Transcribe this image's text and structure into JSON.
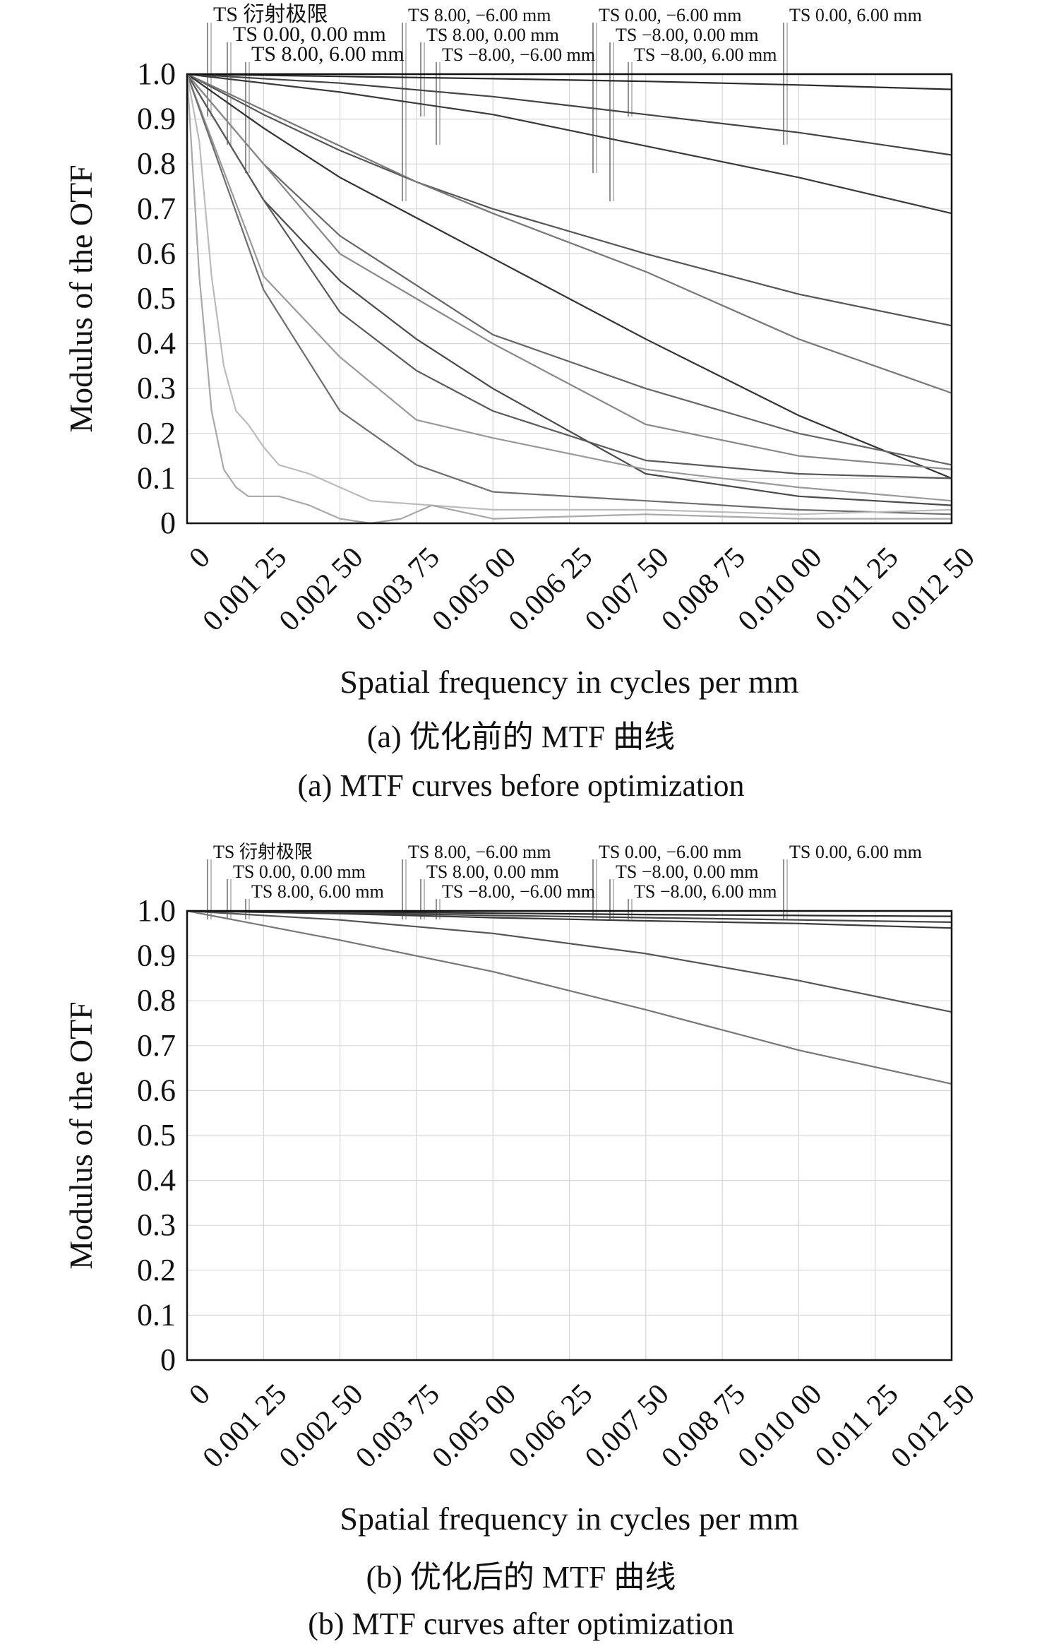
{
  "chart_data": [
    {
      "type": "line",
      "panel": "a",
      "ylabel": "Modulus of the OTF",
      "xlabel": "Spatial frequency in cycles per mm",
      "caption_cn": "(a) 优化前的 MTF 曲线",
      "caption_en": "(a) MTF curves before optimization",
      "xlim": [
        0,
        0.0125
      ],
      "ylim": [
        0,
        1.0
      ],
      "grid": true,
      "x_ticks": [
        "0",
        "0.001 25",
        "0.002 50",
        "0.003 75",
        "0.005 00",
        "0.006 25",
        "0.007 50",
        "0.008 75",
        "0.010 00",
        "0.011 25",
        "0.012 50"
      ],
      "y_ticks": [
        "0",
        "0.1",
        "0.2",
        "0.3",
        "0.4",
        "0.5",
        "0.6",
        "0.7",
        "0.8",
        "0.9",
        "1.0"
      ],
      "legend": [
        "TS 衍射极限",
        "TS 0.00, 0.00 mm",
        "TS 8.00, 6.00 mm",
        "TS 8.00, −6.00 mm",
        "TS 8.00, 0.00 mm",
        "TS −8.00, −6.00 mm",
        "TS 0.00, −6.00 mm",
        "TS −8.00, 0.00 mm",
        "TS −8.00, 6.00 mm",
        "TS 0.00, 6.00 mm"
      ],
      "series": [
        {
          "x": [
            0,
            0.0025,
            0.005,
            0.0075,
            0.01,
            0.0125
          ],
          "values": [
            1.0,
            0.995,
            0.99,
            0.984,
            0.976,
            0.966
          ]
        },
        {
          "x": [
            0,
            0.0025,
            0.005,
            0.0075,
            0.01,
            0.0125
          ],
          "values": [
            1.0,
            0.98,
            0.95,
            0.91,
            0.87,
            0.82
          ]
        },
        {
          "x": [
            0,
            0.0025,
            0.005,
            0.0075,
            0.01,
            0.0125
          ],
          "values": [
            1.0,
            0.96,
            0.91,
            0.84,
            0.77,
            0.69
          ]
        },
        {
          "x": [
            0,
            0.00125,
            0.0025,
            0.00375,
            0.005,
            0.0075,
            0.01,
            0.0125
          ],
          "values": [
            1.0,
            0.91,
            0.83,
            0.76,
            0.7,
            0.6,
            0.51,
            0.44
          ]
        },
        {
          "x": [
            0,
            0.00125,
            0.0025,
            0.00375,
            0.005,
            0.0075,
            0.01,
            0.0125
          ],
          "values": [
            1.0,
            0.92,
            0.84,
            0.76,
            0.69,
            0.56,
            0.41,
            0.29
          ]
        },
        {
          "x": [
            0,
            0.00125,
            0.0025,
            0.00375,
            0.005,
            0.0075,
            0.01,
            0.0125
          ],
          "values": [
            1.0,
            0.88,
            0.77,
            0.68,
            0.59,
            0.41,
            0.24,
            0.1
          ]
        },
        {
          "x": [
            0,
            0.00125,
            0.0025,
            0.00375,
            0.005,
            0.0075,
            0.01,
            0.0125
          ],
          "values": [
            1.0,
            0.8,
            0.64,
            0.53,
            0.42,
            0.3,
            0.2,
            0.13
          ]
        },
        {
          "x": [
            0,
            0.00125,
            0.0025,
            0.00375,
            0.005,
            0.0075,
            0.01,
            0.0125
          ],
          "values": [
            1.0,
            0.8,
            0.6,
            0.5,
            0.4,
            0.22,
            0.15,
            0.12
          ]
        },
        {
          "x": [
            0,
            0.00125,
            0.0025,
            0.00375,
            0.005,
            0.0075,
            0.01,
            0.0125
          ],
          "values": [
            1.0,
            0.72,
            0.54,
            0.41,
            0.3,
            0.11,
            0.06,
            0.04
          ]
        },
        {
          "x": [
            0,
            0.00125,
            0.0025,
            0.00375,
            0.005,
            0.0075,
            0.01,
            0.0125
          ],
          "values": [
            1.0,
            0.72,
            0.47,
            0.34,
            0.25,
            0.14,
            0.11,
            0.1
          ]
        },
        {
          "x": [
            0,
            0.00125,
            0.0025,
            0.00375,
            0.005,
            0.0075,
            0.01,
            0.0125
          ],
          "values": [
            1.0,
            0.55,
            0.37,
            0.23,
            0.19,
            0.12,
            0.08,
            0.05
          ]
        },
        {
          "x": [
            0,
            0.00125,
            0.0025,
            0.00375,
            0.005,
            0.0075,
            0.01,
            0.0125
          ],
          "values": [
            1.0,
            0.52,
            0.25,
            0.13,
            0.07,
            0.05,
            0.03,
            0.02
          ]
        },
        {
          "x": [
            0,
            0.0002,
            0.0004,
            0.0006,
            0.0008,
            0.001,
            0.00125,
            0.0015,
            0.002,
            0.0025,
            0.003,
            0.004,
            0.005,
            0.0075,
            0.01,
            0.0125
          ],
          "values": [
            1.0,
            0.85,
            0.55,
            0.35,
            0.25,
            0.22,
            0.17,
            0.13,
            0.11,
            0.08,
            0.05,
            0.04,
            0.03,
            0.03,
            0.02,
            0.03
          ]
        },
        {
          "x": [
            0,
            0.0002,
            0.0004,
            0.0006,
            0.0008,
            0.001,
            0.00125,
            0.0015,
            0.002,
            0.0025,
            0.003,
            0.0035,
            0.004,
            0.005,
            0.0075,
            0.01,
            0.0125
          ],
          "values": [
            1.0,
            0.55,
            0.25,
            0.12,
            0.08,
            0.06,
            0.06,
            0.06,
            0.04,
            0.01,
            0.0,
            0.01,
            0.04,
            0.01,
            0.02,
            0.01,
            0.01
          ]
        }
      ]
    },
    {
      "type": "line",
      "panel": "b",
      "ylabel": "Modulus of the OTF",
      "xlabel": "Spatial frequency in cycles per mm",
      "caption_cn": "(b) 优化后的 MTF 曲线",
      "caption_en": "(b) MTF curves after optimization",
      "xlim": [
        0,
        0.0125
      ],
      "ylim": [
        0,
        1.0
      ],
      "grid": true,
      "x_ticks": [
        "0",
        "0.001 25",
        "0.002 50",
        "0.003 75",
        "0.005 00",
        "0.006 25",
        "0.007 50",
        "0.008 75",
        "0.010 00",
        "0.011 25",
        "0.012 50"
      ],
      "y_ticks": [
        "0",
        "0.1",
        "0.2",
        "0.3",
        "0.4",
        "0.5",
        "0.6",
        "0.7",
        "0.8",
        "0.9",
        "1.0"
      ],
      "legend": [
        "TS 衍射极限",
        "TS 0.00, 0.00 mm",
        "TS 8.00, 6.00 mm",
        "TS 8.00, −6.00 mm",
        "TS 8.00, 0.00 mm",
        "TS −8.00, −6.00 mm",
        "TS 0.00, −6.00 mm",
        "TS −8.00, 0.00 mm",
        "TS −8.00, 6.00 mm",
        "TS 0.00, 6.00 mm"
      ],
      "series": [
        {
          "x": [
            0,
            0.0025,
            0.005,
            0.0075,
            0.01,
            0.0125
          ],
          "values": [
            1.0,
            0.998,
            0.995,
            0.992,
            0.99,
            0.988
          ]
        },
        {
          "x": [
            0,
            0.0025,
            0.005,
            0.0075,
            0.01,
            0.0125
          ],
          "values": [
            1.0,
            0.996,
            0.99,
            0.985,
            0.98,
            0.975
          ]
        },
        {
          "x": [
            0,
            0.0025,
            0.005,
            0.0075,
            0.01,
            0.0125
          ],
          "values": [
            1.0,
            0.994,
            0.985,
            0.978,
            0.972,
            0.962
          ]
        },
        {
          "x": [
            0,
            0.0025,
            0.005,
            0.0075,
            0.01,
            0.0125
          ],
          "values": [
            1.0,
            0.98,
            0.95,
            0.905,
            0.845,
            0.775
          ]
        },
        {
          "x": [
            0,
            0.0025,
            0.005,
            0.0075,
            0.01,
            0.0125
          ],
          "values": [
            1.0,
            0.935,
            0.865,
            0.78,
            0.69,
            0.615
          ]
        }
      ]
    }
  ]
}
